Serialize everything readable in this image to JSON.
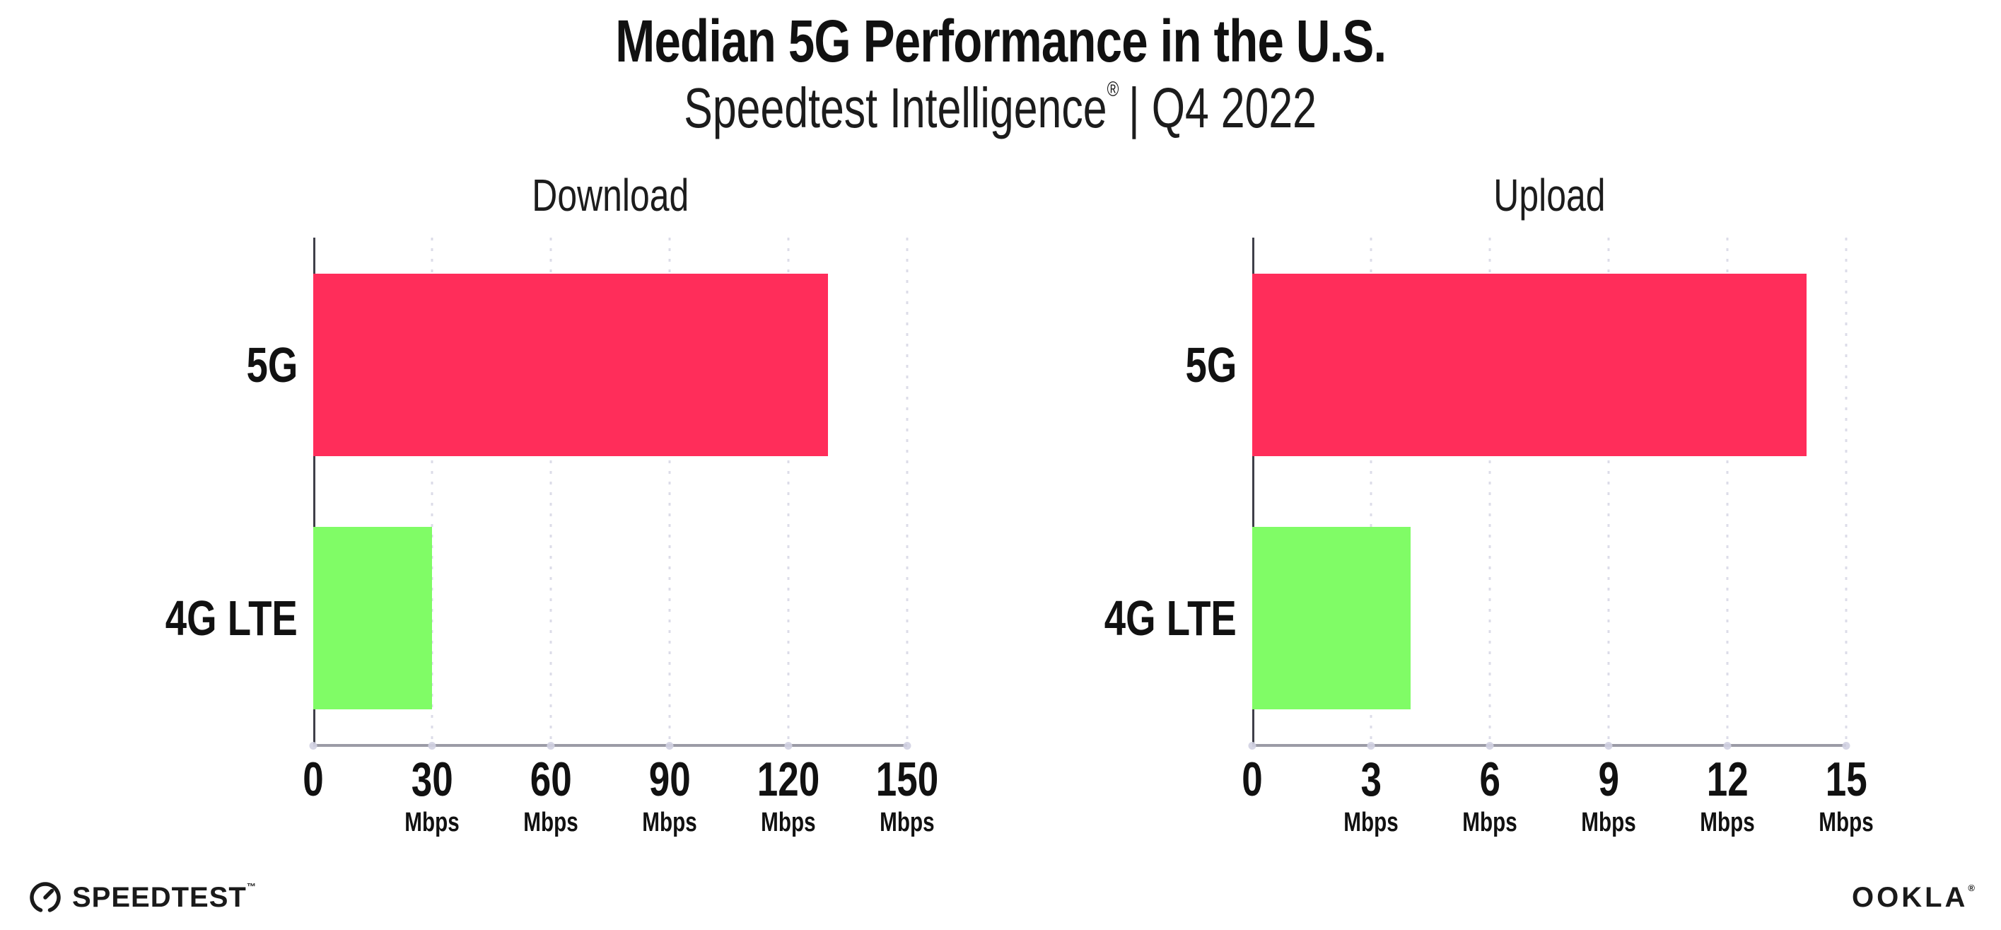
{
  "header": {
    "title": "Median 5G Performance in the U.S.",
    "subtitle_brand": "Speedtest Intelligence",
    "subtitle_reg": "®",
    "subtitle_rest": "| Q4 2022"
  },
  "chart_data": [
    {
      "type": "bar",
      "orientation": "horizontal",
      "title": "Download",
      "categories": [
        "5G",
        "4G LTE"
      ],
      "values": [
        130,
        30
      ],
      "xlim": [
        0,
        150
      ],
      "xticks": [
        0,
        30,
        60,
        90,
        120,
        150
      ],
      "tick_unit": "Mbps",
      "bar_colors": [
        "#FF2D5A",
        "#80FC66"
      ],
      "grid": "dotted-vertical",
      "legend": "none"
    },
    {
      "type": "bar",
      "orientation": "horizontal",
      "title": "Upload",
      "categories": [
        "5G",
        "4G LTE"
      ],
      "values": [
        14,
        4
      ],
      "xlim": [
        0,
        15
      ],
      "xticks": [
        0,
        3,
        6,
        9,
        12,
        15
      ],
      "tick_unit": "Mbps",
      "bar_colors": [
        "#FF2D5A",
        "#80FC66"
      ],
      "grid": "dotted-vertical",
      "legend": "none"
    }
  ],
  "footer": {
    "speedtest_label": "SPEEDTEST",
    "speedtest_mark": "™",
    "ookla_label": "OOKLA",
    "ookla_mark": "®"
  }
}
